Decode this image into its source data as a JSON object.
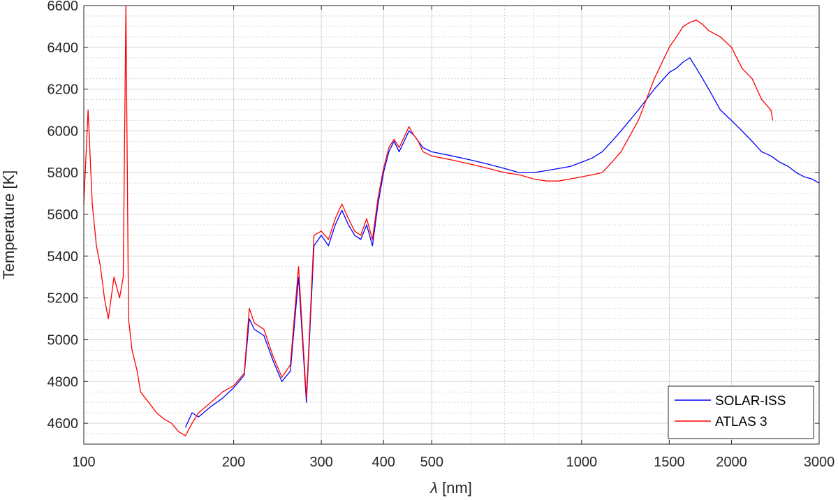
{
  "chart_data": {
    "type": "line",
    "xlabel_var": "λ",
    "xlabel_unit": " [nm]",
    "ylabel": "Temperature [K]",
    "x_scale": "log",
    "xlim": [
      100,
      3000
    ],
    "ylim": [
      4500,
      6600
    ],
    "grid": true,
    "legend_position": "bottom-right",
    "x_ticks": [
      100,
      200,
      300,
      400,
      500,
      1000,
      1500,
      2000,
      3000
    ],
    "y_ticks": [
      4600,
      4800,
      5000,
      5200,
      5400,
      5600,
      5800,
      6000,
      6200,
      6400,
      6600
    ],
    "series": [
      {
        "name": "SOLAR-ISS",
        "color": "#0000ff",
        "x": [
          160,
          165,
          170,
          180,
          190,
          200,
          205,
          210,
          215,
          220,
          230,
          240,
          250,
          260,
          270,
          280,
          290,
          300,
          310,
          320,
          330,
          340,
          350,
          360,
          370,
          380,
          390,
          400,
          410,
          420,
          430,
          440,
          450,
          460,
          470,
          480,
          500,
          550,
          600,
          650,
          700,
          750,
          800,
          850,
          900,
          950,
          1000,
          1050,
          1100,
          1150,
          1200,
          1300,
          1400,
          1500,
          1550,
          1600,
          1650,
          1700,
          1750,
          1800,
          1900,
          2000,
          2100,
          2200,
          2300,
          2400,
          2500,
          2600,
          2700,
          2800,
          2900,
          3000
        ],
        "y": [
          4580,
          4650,
          4630,
          4680,
          4720,
          4770,
          4800,
          4830,
          5100,
          5050,
          5020,
          4900,
          4800,
          4850,
          5300,
          4700,
          5450,
          5500,
          5450,
          5550,
          5620,
          5550,
          5500,
          5480,
          5550,
          5450,
          5650,
          5800,
          5900,
          5950,
          5900,
          5950,
          6000,
          5980,
          5950,
          5920,
          5900,
          5880,
          5860,
          5840,
          5820,
          5800,
          5800,
          5810,
          5820,
          5830,
          5850,
          5870,
          5900,
          5950,
          6000,
          6100,
          6200,
          6280,
          6300,
          6330,
          6350,
          6300,
          6250,
          6200,
          6100,
          6050,
          6000,
          5950,
          5900,
          5880,
          5850,
          5830,
          5800,
          5780,
          5770,
          5750
        ]
      },
      {
        "name": "ATLAS 3",
        "color": "#ff0000",
        "x": [
          100,
          102,
          104,
          106,
          108,
          110,
          112,
          115,
          118,
          120,
          121.5,
          123,
          125,
          128,
          130,
          135,
          140,
          145,
          150,
          155,
          160,
          165,
          170,
          180,
          190,
          200,
          205,
          210,
          215,
          220,
          230,
          240,
          250,
          260,
          270,
          280,
          290,
          300,
          310,
          320,
          330,
          340,
          350,
          360,
          370,
          380,
          390,
          400,
          410,
          420,
          430,
          440,
          450,
          460,
          470,
          480,
          500,
          550,
          600,
          650,
          700,
          750,
          800,
          850,
          900,
          950,
          1000,
          1050,
          1100,
          1150,
          1200,
          1300,
          1400,
          1500,
          1550,
          1600,
          1650,
          1700,
          1750,
          1800,
          1900,
          2000,
          2100,
          2200,
          2300,
          2400,
          2420
        ],
        "y": [
          5650,
          6100,
          5650,
          5450,
          5350,
          5200,
          5100,
          5300,
          5200,
          5300,
          6600,
          5100,
          4950,
          4850,
          4750,
          4700,
          4650,
          4620,
          4600,
          4560,
          4540,
          4600,
          4650,
          4700,
          4750,
          4780,
          4810,
          4840,
          5150,
          5080,
          5050,
          4920,
          4820,
          4880,
          5350,
          4720,
          5500,
          5520,
          5480,
          5580,
          5650,
          5580,
          5520,
          5500,
          5580,
          5480,
          5680,
          5820,
          5920,
          5960,
          5920,
          5970,
          6020,
          5980,
          5950,
          5900,
          5880,
          5860,
          5840,
          5820,
          5800,
          5790,
          5770,
          5760,
          5760,
          5770,
          5780,
          5790,
          5800,
          5850,
          5900,
          6050,
          6250,
          6400,
          6450,
          6500,
          6520,
          6530,
          6510,
          6480,
          6450,
          6400,
          6300,
          6250,
          6150,
          6100,
          6050
        ]
      }
    ]
  }
}
